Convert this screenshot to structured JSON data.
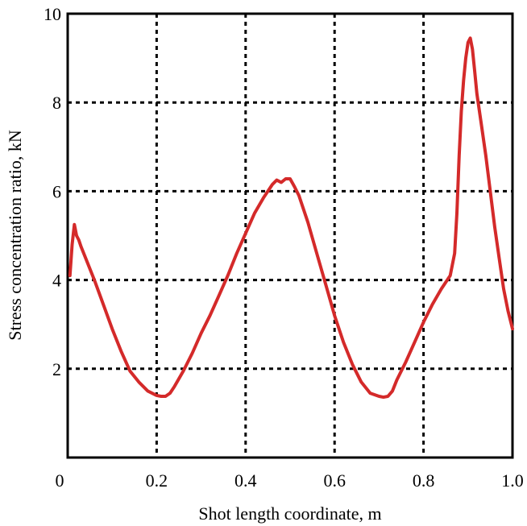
{
  "chart_data": {
    "type": "line",
    "title": "",
    "xlabel": "Shot length coordinate, m",
    "ylabel": "Stress concentration ratio, kN",
    "xlim": [
      0,
      1.0
    ],
    "ylim": [
      0,
      10
    ],
    "x_ticks": [
      0,
      0.2,
      0.4,
      0.6,
      0.8,
      1.0
    ],
    "x_tick_labels": [
      "0",
      "0.2",
      "0.4",
      "0.6",
      "0.8",
      "1.0"
    ],
    "y_ticks": [
      2,
      4,
      6,
      8,
      10
    ],
    "y_tick_labels": [
      "2",
      "4",
      "6",
      "8",
      "10"
    ],
    "grid": true,
    "grid_style": "dotted",
    "legend": "none",
    "line_color": "#d42a2a",
    "series": [
      {
        "x": [
          0.005,
          0.01,
          0.015,
          0.02,
          0.025,
          0.03,
          0.04,
          0.06,
          0.08,
          0.1,
          0.12,
          0.14,
          0.16,
          0.18,
          0.2,
          0.21,
          0.22,
          0.23,
          0.24,
          0.26,
          0.28,
          0.3,
          0.32,
          0.34,
          0.36,
          0.38,
          0.4,
          0.42,
          0.44,
          0.46,
          0.47,
          0.48,
          0.49,
          0.5,
          0.51,
          0.52,
          0.54,
          0.56,
          0.58,
          0.6,
          0.62,
          0.64,
          0.66,
          0.68,
          0.7,
          0.71,
          0.72,
          0.73,
          0.74,
          0.76,
          0.78,
          0.8,
          0.82,
          0.84,
          0.86,
          0.87,
          0.875,
          0.88,
          0.885,
          0.89,
          0.895,
          0.9,
          0.905,
          0.91,
          0.915,
          0.92,
          0.93,
          0.94,
          0.95,
          0.96,
          0.97,
          0.98,
          0.99,
          1.0
        ],
        "y": [
          4.1,
          4.8,
          5.25,
          5.0,
          4.9,
          4.75,
          4.5,
          4.0,
          3.45,
          2.9,
          2.4,
          1.95,
          1.7,
          1.5,
          1.4,
          1.38,
          1.38,
          1.45,
          1.6,
          1.95,
          2.35,
          2.8,
          3.2,
          3.65,
          4.1,
          4.6,
          5.05,
          5.5,
          5.85,
          6.15,
          6.25,
          6.2,
          6.28,
          6.28,
          6.1,
          5.9,
          5.3,
          4.6,
          3.9,
          3.2,
          2.6,
          2.1,
          1.7,
          1.45,
          1.38,
          1.36,
          1.38,
          1.5,
          1.75,
          2.15,
          2.6,
          3.05,
          3.45,
          3.8,
          4.1,
          4.6,
          5.5,
          6.8,
          7.8,
          8.5,
          9.0,
          9.35,
          9.45,
          9.2,
          8.7,
          8.2,
          7.5,
          6.8,
          6.0,
          5.2,
          4.5,
          3.8,
          3.3,
          2.9
        ]
      }
    ]
  }
}
